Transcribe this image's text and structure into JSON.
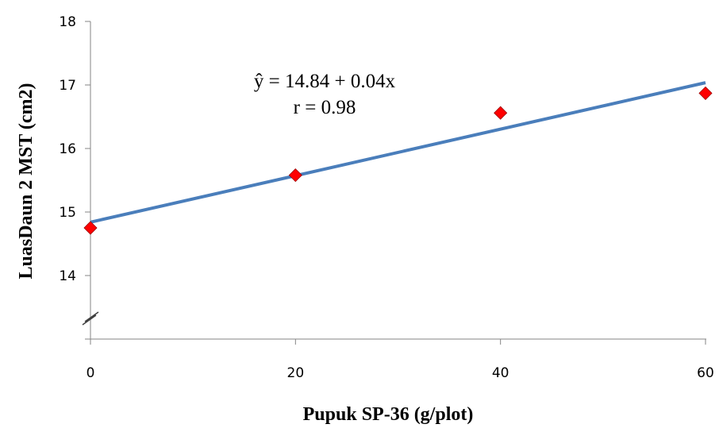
{
  "chart_data": {
    "type": "scatter",
    "x": [
      0,
      20,
      40,
      60
    ],
    "y": [
      14.75,
      15.58,
      16.56,
      16.87
    ],
    "xlabel": "Pupuk SP-36 (g/plot)",
    "ylabel": "LuasDaun 2 MST (cm2)",
    "x_ticks": [
      "0",
      "20",
      "40",
      "60"
    ],
    "y_ticks": [
      "14",
      "15",
      "16",
      "17",
      "18"
    ],
    "xlim": [
      0,
      60
    ],
    "ylim": [
      13,
      18
    ],
    "axis_break": "y",
    "grid": false,
    "legend": "none",
    "trendline": {
      "intercept": 14.84,
      "slope": 0.0366
    },
    "annotations": [
      "ŷ = 14.84 + 0.04x",
      "r = 0.98"
    ],
    "colors": {
      "marker": "#ff0000",
      "trendline": "#4a7ebb",
      "axis": "#868686"
    }
  }
}
